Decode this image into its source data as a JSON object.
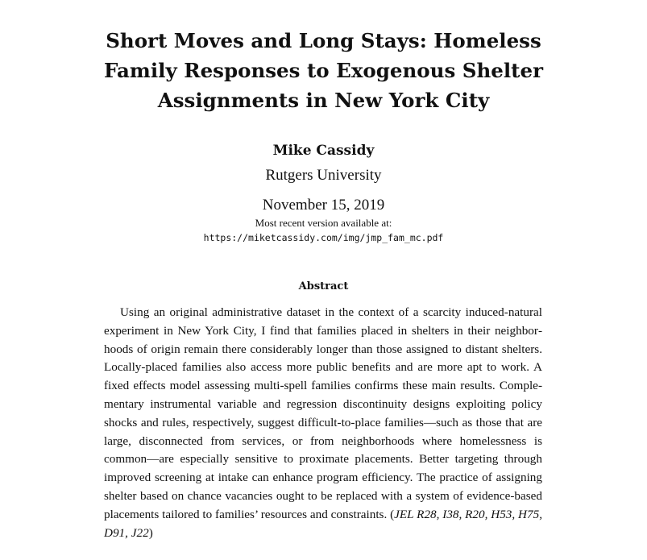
{
  "paper": {
    "title": "Short Moves and Long Stays: Homeless Family Responses to Exogenous Shelter Assignments in New York City",
    "author": "Mike Cassidy",
    "affiliation": "Rutgers University",
    "date": "November 15, 2019",
    "version_note": "Most recent version available at:",
    "version_url": "https://miketcassidy.com/img/jmp_fam_mc.pdf"
  },
  "abstract": {
    "heading": "Abstract",
    "body": "Using an original administrative dataset in the context of a scarcity induced-natural experiment in New York City, I find that families placed in shelters in their neighbor­hoods of origin remain there considerably longer than those assigned to distant shelters. Locally-placed families also access more public benefits and are more apt to work. A fixed effects model assessing multi-spell families confirms these main results. Comple­mentary instrumental variable and regression discontinuity designs exploiting policy shocks and rules, respectively, suggest difficult-to-place families—such as those that are large, disconnected from services, or from neighborhoods where homelessness is common—are especially sensitive to proximate placements. Better targeting through improved screening at intake can enhance program efficiency. The practice of assigning shelter based on chance vacancies ought to be replaced with a system of evidence-based placements tailored to families’ resources and constraints.",
    "jel_open": "(",
    "jel_codes": "JEL R28, I38, R20, H53, H75, D91, J22",
    "jel_close": ")"
  }
}
